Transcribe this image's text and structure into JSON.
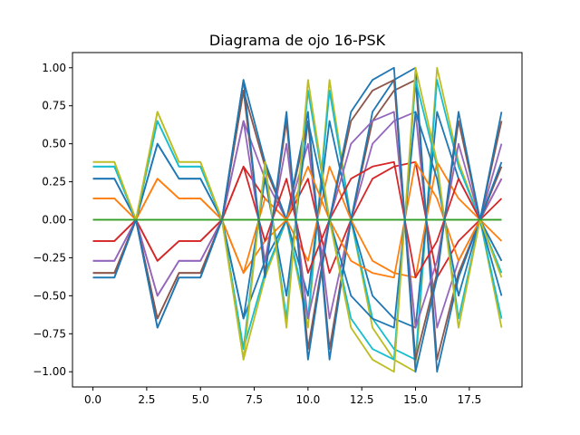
{
  "chart_data": {
    "type": "line",
    "title": "Diagrama de ojo 16-PSK",
    "xlabel": "",
    "ylabel": "",
    "xlim": [
      -0.95,
      19.95
    ],
    "ylim": [
      -1.1,
      1.1
    ],
    "x_ticks": [
      0.0,
      2.5,
      5.0,
      7.5,
      10.0,
      12.5,
      15.0,
      17.5
    ],
    "x_tick_labels": [
      "0.0",
      "2.5",
      "5.0",
      "7.5",
      "10.0",
      "12.5",
      "15.0",
      "17.5"
    ],
    "y_ticks": [
      1.0,
      0.75,
      0.5,
      0.25,
      0.0,
      -0.25,
      -0.5,
      -0.75,
      -1.0
    ],
    "y_tick_labels": [
      "1.00",
      "0.75",
      "0.50",
      "0.25",
      "0.00",
      "−0.25",
      "−0.50",
      "−0.75",
      "−1.00"
    ],
    "grid": false,
    "legend": false,
    "x": [
      0,
      1,
      2,
      3,
      4,
      5,
      6,
      7,
      8,
      9,
      10,
      11,
      12,
      13,
      14,
      15,
      16,
      17,
      18,
      19
    ],
    "series": [
      {
        "color": "#bcbd22",
        "values": [
          0.38,
          0.38,
          0.0,
          0.71,
          0.38,
          0.38,
          0.0,
          -0.92,
          -0.38,
          0.0,
          -0.71,
          0.92,
          0.0,
          -0.71,
          -0.92,
          -1.0,
          1.0,
          0.38,
          0.0,
          -0.71
        ]
      },
      {
        "color": "#17becf",
        "values": [
          0.35,
          0.35,
          0.0,
          0.65,
          0.35,
          0.35,
          0.0,
          -0.85,
          -0.35,
          0.0,
          -0.65,
          0.85,
          0.0,
          -0.65,
          -0.85,
          -0.92,
          0.92,
          0.35,
          0.0,
          -0.65
        ]
      },
      {
        "color": "#1f77b4",
        "values": [
          0.27,
          0.27,
          0.0,
          0.5,
          0.27,
          0.27,
          0.0,
          -0.65,
          -0.27,
          0.0,
          -0.5,
          0.65,
          0.0,
          -0.5,
          -0.65,
          -0.71,
          0.71,
          0.27,
          0.0,
          -0.5
        ]
      },
      {
        "color": "#ff7f0e",
        "values": [
          0.14,
          0.14,
          0.0,
          0.27,
          0.14,
          0.14,
          0.0,
          -0.35,
          -0.14,
          0.0,
          -0.27,
          0.35,
          0.0,
          -0.27,
          -0.35,
          -0.38,
          0.38,
          0.14,
          0.0,
          -0.27
        ]
      },
      {
        "color": "#2ca02c",
        "values": [
          0,
          0,
          0,
          0,
          0,
          0,
          0,
          0,
          0,
          0,
          0,
          0,
          0,
          0,
          0,
          0,
          0,
          0,
          0,
          0
        ]
      },
      {
        "color": "#d62728",
        "values": [
          -0.14,
          -0.14,
          0.0,
          -0.27,
          -0.14,
          -0.14,
          0.0,
          0.35,
          0.14,
          0.0,
          0.27,
          -0.35,
          0.0,
          0.27,
          0.35,
          0.38,
          -0.38,
          -0.14,
          0.0,
          0.27
        ]
      },
      {
        "color": "#9467bd",
        "values": [
          -0.27,
          -0.27,
          0.0,
          -0.5,
          -0.27,
          -0.27,
          0.0,
          0.65,
          0.27,
          0.0,
          0.5,
          -0.65,
          0.0,
          0.5,
          0.65,
          0.71,
          -0.71,
          -0.27,
          0.0,
          0.5
        ]
      },
      {
        "color": "#8c564b",
        "values": [
          -0.35,
          -0.35,
          0.0,
          -0.65,
          -0.35,
          -0.35,
          0.0,
          0.85,
          0.35,
          0.0,
          0.65,
          -0.85,
          0.0,
          0.65,
          0.85,
          0.92,
          -0.92,
          -0.35,
          0.0,
          0.65
        ]
      },
      {
        "color": "#1f77b4",
        "values": [
          -0.38,
          -0.38,
          0.0,
          -0.71,
          -0.38,
          -0.38,
          0.0,
          0.92,
          0.38,
          0.0,
          0.71,
          -0.92,
          0.0,
          0.71,
          0.92,
          1.0,
          -1.0,
          -0.38,
          0.0,
          0.71
        ]
      },
      {
        "color": "#e377c2",
        "values": [
          0.0,
          0.0,
          0.0,
          0.0,
          0.0,
          0.0,
          0.0,
          0.0,
          0.0,
          0.0,
          0.0,
          0.0,
          0.0,
          0.0,
          0.0,
          0.0,
          0.0,
          0.0,
          0.0,
          0.0
        ]
      },
      {
        "color": "#bcbd22",
        "values": [
          0.0,
          0.0,
          0.0,
          0.0,
          0.0,
          0.0,
          0.0,
          0.0,
          0.0,
          0.0,
          0.0,
          0.0,
          0.0,
          0.0,
          0.0,
          0.0,
          0.0,
          0.0,
          0.0,
          0.0
        ]
      },
      {
        "color": "#ff7f0e",
        "values": [
          0.14,
          0.14,
          0.0,
          0.27,
          0.14,
          0.14,
          0.0,
          -0.35,
          0.14,
          0.0,
          0.35,
          0.0,
          -0.27,
          -0.35,
          -0.38,
          0.38,
          0.14,
          -0.27,
          0.0,
          -0.14
        ]
      },
      {
        "color": "#1f77b4",
        "values": [
          0.27,
          0.27,
          0.0,
          0.5,
          0.27,
          0.27,
          0.0,
          -0.65,
          0.27,
          -0.5,
          0.65,
          0.0,
          -0.5,
          -0.65,
          -0.71,
          0.71,
          0.27,
          -0.5,
          0.0,
          -0.27
        ]
      },
      {
        "color": "#17becf",
        "values": [
          0.35,
          0.35,
          0.0,
          0.65,
          0.35,
          0.35,
          0.0,
          -0.85,
          0.35,
          -0.65,
          0.85,
          0.0,
          -0.65,
          -0.85,
          -0.92,
          0.92,
          0.35,
          -0.65,
          0.0,
          -0.35
        ]
      },
      {
        "color": "#bcbd22",
        "values": [
          0.38,
          0.38,
          0.0,
          0.71,
          0.38,
          0.38,
          0.0,
          -0.92,
          0.38,
          -0.71,
          0.92,
          0.0,
          -0.71,
          -0.92,
          -1.0,
          1.0,
          0.38,
          -0.71,
          0.0,
          -0.38
        ]
      },
      {
        "color": "#d62728",
        "values": [
          -0.14,
          -0.14,
          0.0,
          -0.27,
          -0.14,
          -0.14,
          0.0,
          0.35,
          -0.14,
          0.27,
          -0.35,
          0.0,
          0.27,
          0.35,
          0.38,
          -0.38,
          -0.14,
          0.27,
          0.0,
          0.14
        ]
      },
      {
        "color": "#9467bd",
        "values": [
          -0.27,
          -0.27,
          0.0,
          -0.5,
          -0.27,
          -0.27,
          0.0,
          0.65,
          -0.27,
          0.5,
          -0.65,
          0.0,
          0.5,
          0.65,
          0.71,
          -0.71,
          -0.27,
          0.5,
          0.0,
          0.27
        ]
      },
      {
        "color": "#8c564b",
        "values": [
          -0.35,
          -0.35,
          0.0,
          -0.65,
          -0.35,
          -0.35,
          0.0,
          0.85,
          -0.35,
          0.65,
          -0.85,
          0.0,
          0.65,
          0.85,
          0.92,
          -0.92,
          -0.35,
          0.65,
          0.0,
          0.35
        ]
      },
      {
        "color": "#1f77b4",
        "values": [
          -0.38,
          -0.38,
          0.0,
          -0.71,
          -0.38,
          -0.38,
          0.0,
          0.92,
          -0.38,
          0.71,
          -0.92,
          0.0,
          0.71,
          0.92,
          1.0,
          -1.0,
          -0.38,
          0.71,
          0.0,
          0.38
        ]
      },
      {
        "color": "#2ca02c",
        "values": [
          0,
          0,
          0,
          0,
          0,
          0,
          0,
          0,
          0,
          0,
          0,
          0,
          0,
          0,
          0,
          0,
          0,
          0,
          0,
          0
        ]
      }
    ]
  }
}
